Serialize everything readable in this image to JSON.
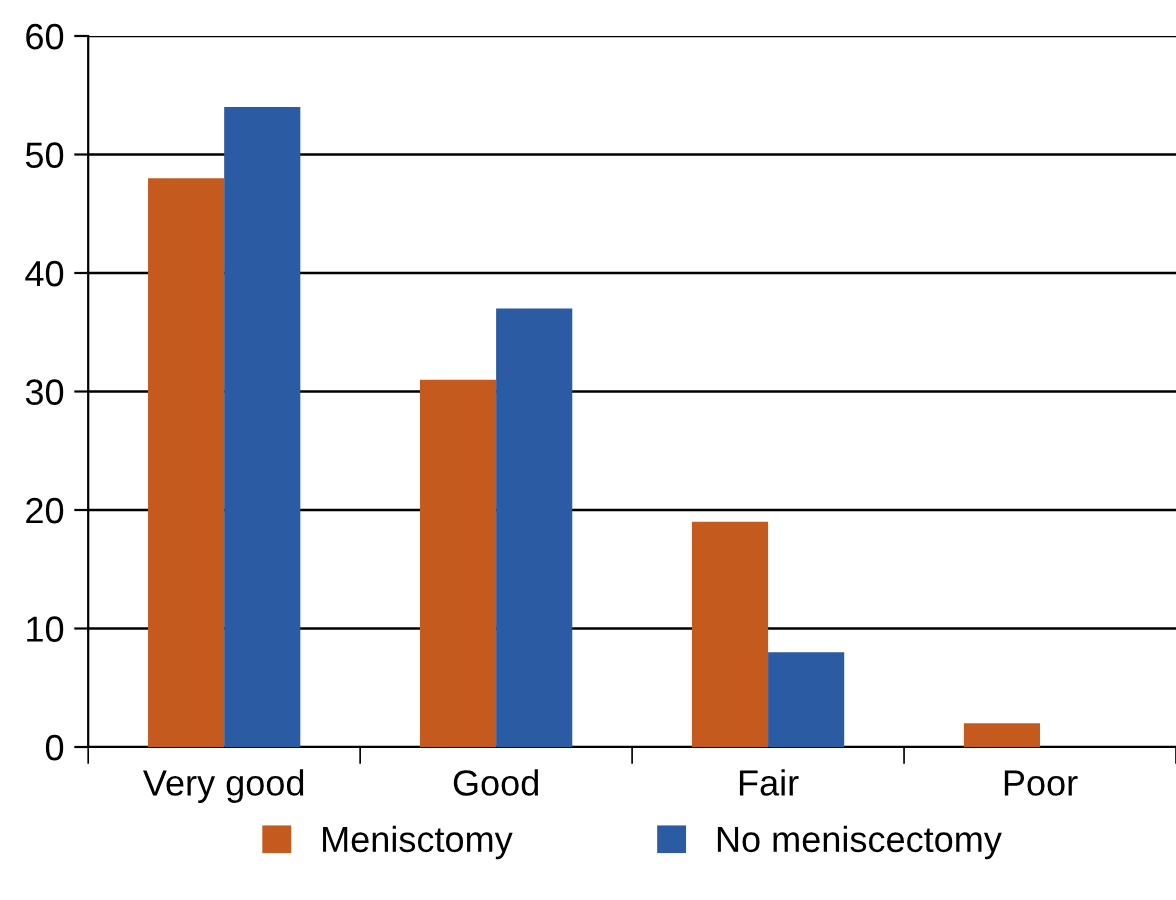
{
  "chart_data": {
    "type": "bar",
    "categories": [
      "Very good",
      "Good",
      "Fair",
      "Poor"
    ],
    "series": [
      {
        "name": "Menisctomy",
        "color": "#c55a1e",
        "values": [
          48,
          31,
          19,
          2
        ]
      },
      {
        "name": "No meniscectomy",
        "color": "#2a5ba3",
        "values": [
          54,
          37,
          8,
          0
        ]
      }
    ],
    "ylim": [
      0,
      60
    ],
    "yticks": [
      0,
      10,
      20,
      30,
      40,
      50,
      60
    ],
    "grid": "y",
    "legend": "bottom"
  }
}
